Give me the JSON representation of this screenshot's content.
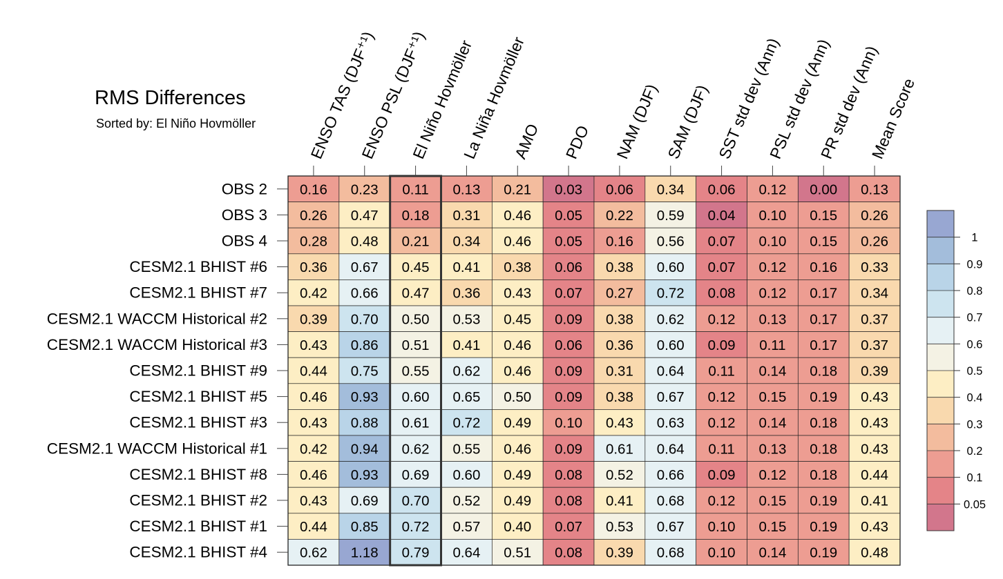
{
  "chart_data": {
    "type": "heatmap",
    "title": "RMS Differences",
    "subtitle": "Sorted by: El Niño Hovmöller",
    "highlight_column": "El Niño Hovmöller",
    "columns": [
      "ENSO TAS (DJF⁺¹)",
      "ENSO PSL (DJF⁺¹)",
      "El Niño Hovmöller",
      "La Niña Hovmöller",
      "AMO",
      "PDO",
      "NAM (DJF)",
      "SAM (DJF)",
      "SST std dev (Ann)",
      "PSL std dev (Ann)",
      "PR std dev (Ann)",
      "Mean Score"
    ],
    "rows": [
      {
        "name": "OBS 2",
        "values": [
          "0.16",
          "0.23",
          "0.11",
          "0.13",
          "0.21",
          "0.03",
          "0.06",
          "0.34",
          "0.06",
          "0.12",
          "0.00",
          "0.13"
        ]
      },
      {
        "name": "OBS 3",
        "values": [
          "0.26",
          "0.47",
          "0.18",
          "0.31",
          "0.46",
          "0.05",
          "0.22",
          "0.59",
          "0.04",
          "0.10",
          "0.15",
          "0.26"
        ]
      },
      {
        "name": "OBS 4",
        "values": [
          "0.28",
          "0.48",
          "0.21",
          "0.34",
          "0.46",
          "0.05",
          "0.16",
          "0.56",
          "0.07",
          "0.10",
          "0.15",
          "0.26"
        ]
      },
      {
        "name": "CESM2.1 BHIST #6",
        "values": [
          "0.36",
          "0.67",
          "0.45",
          "0.41",
          "0.38",
          "0.06",
          "0.38",
          "0.60",
          "0.07",
          "0.12",
          "0.16",
          "0.33"
        ]
      },
      {
        "name": "CESM2.1 BHIST #7",
        "values": [
          "0.42",
          "0.66",
          "0.47",
          "0.36",
          "0.43",
          "0.07",
          "0.27",
          "0.72",
          "0.08",
          "0.12",
          "0.17",
          "0.34"
        ]
      },
      {
        "name": "CESM2.1 WACCM Historical #2",
        "values": [
          "0.39",
          "0.70",
          "0.50",
          "0.53",
          "0.45",
          "0.09",
          "0.38",
          "0.62",
          "0.12",
          "0.13",
          "0.17",
          "0.37"
        ]
      },
      {
        "name": "CESM2.1 WACCM Historical #3",
        "values": [
          "0.43",
          "0.86",
          "0.51",
          "0.41",
          "0.46",
          "0.06",
          "0.36",
          "0.60",
          "0.09",
          "0.11",
          "0.17",
          "0.37"
        ]
      },
      {
        "name": "CESM2.1 BHIST #9",
        "values": [
          "0.44",
          "0.75",
          "0.55",
          "0.62",
          "0.46",
          "0.09",
          "0.31",
          "0.64",
          "0.11",
          "0.14",
          "0.18",
          "0.39"
        ]
      },
      {
        "name": "CESM2.1 BHIST #5",
        "values": [
          "0.46",
          "0.93",
          "0.60",
          "0.65",
          "0.50",
          "0.09",
          "0.38",
          "0.67",
          "0.12",
          "0.15",
          "0.19",
          "0.43"
        ]
      },
      {
        "name": "CESM2.1 BHIST #3",
        "values": [
          "0.43",
          "0.88",
          "0.61",
          "0.72",
          "0.49",
          "0.10",
          "0.43",
          "0.63",
          "0.12",
          "0.14",
          "0.18",
          "0.43"
        ]
      },
      {
        "name": "CESM2.1 WACCM Historical #1",
        "values": [
          "0.42",
          "0.94",
          "0.62",
          "0.55",
          "0.46",
          "0.09",
          "0.61",
          "0.64",
          "0.11",
          "0.13",
          "0.18",
          "0.43"
        ]
      },
      {
        "name": "CESM2.1 BHIST #8",
        "values": [
          "0.46",
          "0.93",
          "0.69",
          "0.60",
          "0.49",
          "0.08",
          "0.52",
          "0.66",
          "0.09",
          "0.12",
          "0.18",
          "0.44"
        ]
      },
      {
        "name": "CESM2.1 BHIST #2",
        "values": [
          "0.43",
          "0.69",
          "0.70",
          "0.52",
          "0.49",
          "0.08",
          "0.41",
          "0.68",
          "0.12",
          "0.15",
          "0.19",
          "0.41"
        ]
      },
      {
        "name": "CESM2.1 BHIST #1",
        "values": [
          "0.44",
          "0.85",
          "0.72",
          "0.57",
          "0.40",
          "0.07",
          "0.53",
          "0.67",
          "0.10",
          "0.15",
          "0.19",
          "0.43"
        ]
      },
      {
        "name": "CESM2.1 BHIST #4",
        "values": [
          "0.62",
          "1.18",
          "0.79",
          "0.64",
          "0.51",
          "0.08",
          "0.39",
          "0.68",
          "0.10",
          "0.14",
          "0.19",
          "0.48"
        ]
      }
    ],
    "colorbar": {
      "boundaries": [
        0.05,
        0.1,
        0.2,
        0.3,
        0.4,
        0.5,
        0.6,
        0.7,
        0.8,
        0.9,
        1
      ],
      "tick_labels": [
        "0.05",
        "0.1",
        "0.2",
        "0.3",
        "0.4",
        "0.5",
        "0.6",
        "0.7",
        "0.8",
        "0.9",
        "1"
      ],
      "colors": [
        "#d2768c",
        "#e48488",
        "#ed9d92",
        "#f3bc9e",
        "#f9d9ae",
        "#fdeec4",
        "#f4f2e4",
        "#e6f1f4",
        "#cde4ef",
        "#b9d4e8",
        "#a3bddb",
        "#98a7d2"
      ]
    }
  }
}
